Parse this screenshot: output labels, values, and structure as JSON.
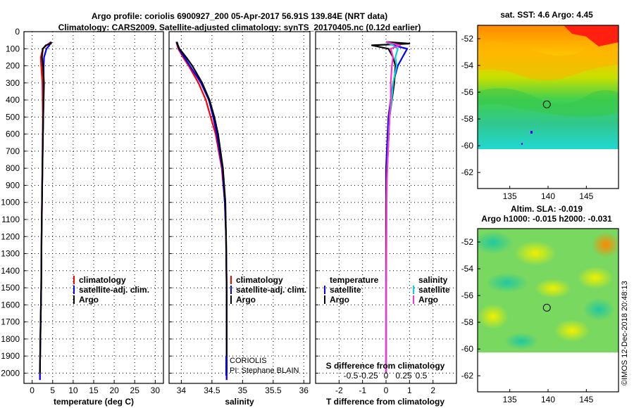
{
  "header": {
    "title_line1": "Argo profile: coriolis 6900927_200 05-Apr-2017 56.91S 139.84E (NRT data)",
    "title_line2": "Climatology: CARS2009. Satellite-adjusted climatology: synTS_20170405.nc (0.12d earlier)"
  },
  "colors": {
    "climatology": "#ff0000",
    "satellite_adj": "#0000ff",
    "argo": "#000000",
    "satellite": "#00d8d8",
    "argo_salinity": "#ff33cc"
  },
  "depth_ticks": [
    "0",
    "100",
    "200",
    "300",
    "400",
    "500",
    "600",
    "700",
    "800",
    "900",
    "1000",
    "1100",
    "1200",
    "1300",
    "1400",
    "1500",
    "1600",
    "1700",
    "1800",
    "1900",
    "2000"
  ],
  "chart_data": [
    {
      "type": "line",
      "name": "temperature-panel",
      "xlabel": "temperature (deg C)",
      "ylabel": "depth",
      "xlim": [
        -2,
        32
      ],
      "ylim": [
        2060,
        0
      ],
      "xticks": [
        "0",
        "5",
        "10",
        "15",
        "20",
        "25",
        "30"
      ],
      "xtick_values": [
        0,
        5,
        10,
        15,
        20,
        25,
        30
      ],
      "grid": true,
      "legend": [
        "climatology",
        "satellite-adj. clim.",
        "Argo"
      ],
      "series": [
        {
          "name": "climatology",
          "depth": [
            60,
            80,
            100,
            150,
            200,
            300,
            500,
            800,
            1000,
            1200,
            1500,
            1800,
            2000,
            2040
          ],
          "values": [
            4.6,
            3.5,
            2.6,
            2.1,
            2.2,
            2.5,
            2.6,
            2.5,
            2.4,
            2.3,
            2.2,
            2.0,
            1.9,
            1.9
          ]
        },
        {
          "name": "satellite-adj. clim.",
          "depth": [
            60,
            80,
            100,
            150,
            200,
            300,
            500,
            800,
            1000,
            1200,
            1500,
            1800,
            2000,
            2040
          ],
          "values": [
            4.6,
            4.2,
            3.5,
            2.9,
            2.8,
            2.8,
            2.7,
            2.5,
            2.4,
            2.3,
            2.2,
            2.0,
            1.9,
            1.9
          ]
        },
        {
          "name": "Argo",
          "depth": [
            60,
            70,
            80,
            100,
            150,
            200,
            300,
            500,
            800,
            1000,
            1200,
            1500,
            1800,
            2000
          ],
          "values": [
            4.7,
            4.6,
            3.3,
            2.6,
            2.4,
            2.6,
            2.9,
            2.7,
            2.5,
            2.4,
            2.3,
            2.2,
            2.0,
            1.9
          ]
        }
      ]
    },
    {
      "type": "line",
      "name": "salinity-panel",
      "xlabel": "salinity",
      "xlim": [
        33.8,
        36.1
      ],
      "ylim": [
        2060,
        0
      ],
      "xticks": [
        "34",
        "34.5",
        "35",
        "35.5",
        "36"
      ],
      "xtick_values": [
        34,
        34.5,
        35,
        35.5,
        36
      ],
      "grid": true,
      "legend": [
        "climatology",
        "satellite-adj. clim.",
        "Argo"
      ],
      "notes": [
        "CORIOLIS",
        "PI: Stephane BLAIN"
      ],
      "series": [
        {
          "name": "climatology",
          "depth": [
            60,
            100,
            150,
            200,
            300,
            400,
            500,
            600,
            800,
            1000,
            1200,
            1500,
            1800,
            2040
          ],
          "values": [
            33.92,
            33.95,
            34.03,
            34.12,
            34.28,
            34.4,
            34.48,
            34.56,
            34.66,
            34.71,
            34.73,
            34.74,
            34.74,
            34.74
          ]
        },
        {
          "name": "satellite-adj. clim.",
          "depth": [
            60,
            100,
            150,
            200,
            300,
            400,
            500,
            600,
            800,
            1000,
            1200,
            1500,
            1800,
            2040
          ],
          "values": [
            33.93,
            33.96,
            34.05,
            34.14,
            34.32,
            34.45,
            34.52,
            34.58,
            34.67,
            34.71,
            34.73,
            34.74,
            34.74,
            34.74
          ]
        },
        {
          "name": "Argo",
          "depth": [
            60,
            100,
            150,
            200,
            300,
            400,
            500,
            600,
            800,
            1000,
            1200,
            1500,
            1800,
            2000
          ],
          "values": [
            33.92,
            33.97,
            34.08,
            34.18,
            34.34,
            34.46,
            34.54,
            34.6,
            34.68,
            34.72,
            34.73,
            34.74,
            34.74,
            34.74
          ]
        }
      ]
    },
    {
      "type": "line",
      "name": "difference-panel",
      "xlabel": "T difference from climatology",
      "xlabel_top": "S difference from climatology",
      "xlim": [
        -3,
        3
      ],
      "ylim": [
        2060,
        0
      ],
      "xticks": [
        "-2",
        "-1",
        "0",
        "1",
        "2"
      ],
      "xtick_values": [
        -2,
        -1,
        0,
        1,
        2
      ],
      "sticks": [
        "-0.5",
        "-0.25",
        "0",
        "0.25",
        "0.5"
      ],
      "stick_values": [
        -1.5,
        -0.75,
        0,
        0.75,
        1.5
      ],
      "grid": true,
      "legend_temperature_title": "temperature",
      "legend_salinity_title": "salinity",
      "legend_temperature": [
        "satellite",
        "Argo"
      ],
      "legend_salinity": [
        "satellite",
        "Argo"
      ],
      "series": [
        {
          "name": "T satellite",
          "depth": [
            60,
            80,
            100,
            150,
            200,
            300,
            500,
            800,
            1000,
            1500,
            2000
          ],
          "values": [
            0,
            0.3,
            0.9,
            0.7,
            0.5,
            0.3,
            0.1,
            0,
            0,
            0,
            0
          ]
        },
        {
          "name": "T Argo",
          "depth": [
            60,
            70,
            80,
            100,
            150,
            200,
            300,
            500,
            800,
            1000,
            1500,
            2000
          ],
          "values": [
            0,
            1.0,
            -0.6,
            0.1,
            0.3,
            0.4,
            0.35,
            0.15,
            0.05,
            0,
            0,
            0
          ]
        },
        {
          "name": "S satellite",
          "depth": [
            60,
            80,
            100,
            150,
            200,
            300,
            400,
            500,
            800,
            1000,
            1500,
            2000
          ],
          "values": [
            0,
            0.3,
            0.5,
            0.4,
            0.45,
            0.3,
            0.24,
            0.15,
            0.05,
            0.02,
            0.01,
            0
          ]
        },
        {
          "name": "S Argo",
          "depth": [
            60,
            80,
            100,
            150,
            200,
            300,
            400,
            500,
            800,
            1000,
            1500,
            2000
          ],
          "values": [
            0,
            0.6,
            0.2,
            0.3,
            0.25,
            0.2,
            0.2,
            0.15,
            0.05,
            0.02,
            0.01,
            0
          ]
        }
      ]
    }
  ],
  "sst_map": {
    "title": "sat. SST: 4.6 Argo: 4.45",
    "yticks": [
      "-52",
      "-54",
      "-56",
      "-58",
      "-60",
      "-62"
    ],
    "xticks": [
      "135",
      "140",
      "145"
    ],
    "argo_lon": 139.84,
    "argo_lat": -56.91
  },
  "sla_map": {
    "title_line1": "Altim. SLA: -0.019",
    "title_line2": "Argo h1000: -0.015 h2000: -0.031",
    "yticks": [
      "-52",
      "-54",
      "-56",
      "-58",
      "-60",
      "-62"
    ],
    "xticks": [
      "135",
      "140",
      "145"
    ],
    "argo_lon": 139.84,
    "argo_lat": -56.91
  },
  "credit": "©IMOS 12-Dec-2018 20:48:13"
}
